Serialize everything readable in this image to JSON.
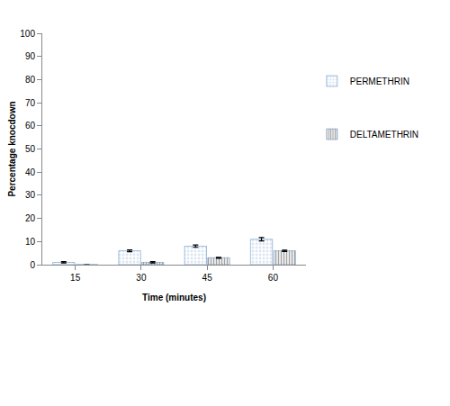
{
  "chart_data": {
    "type": "bar",
    "x_label": "Time (minutes)",
    "y_label": "Percentage knocdown",
    "categories": [
      "15",
      "30",
      "45",
      "60"
    ],
    "series": [
      {
        "name": "PERMETHRIN",
        "color": "#4f81bd",
        "values": [
          1,
          6,
          8,
          11
        ],
        "errors": [
          0.3,
          0.4,
          0.5,
          0.7
        ]
      },
      {
        "name": "DELTAMETHRIN",
        "color": "#4f81bd",
        "values": [
          0,
          1,
          3,
          6
        ],
        "errors": [
          0,
          0.3,
          0.2,
          0.3
        ]
      }
    ],
    "ylim": [
      0,
      100
    ],
    "yticks": [
      0,
      10,
      20,
      30,
      40,
      50,
      60,
      70,
      80,
      90,
      100
    ],
    "grid": false,
    "legend": "right"
  }
}
